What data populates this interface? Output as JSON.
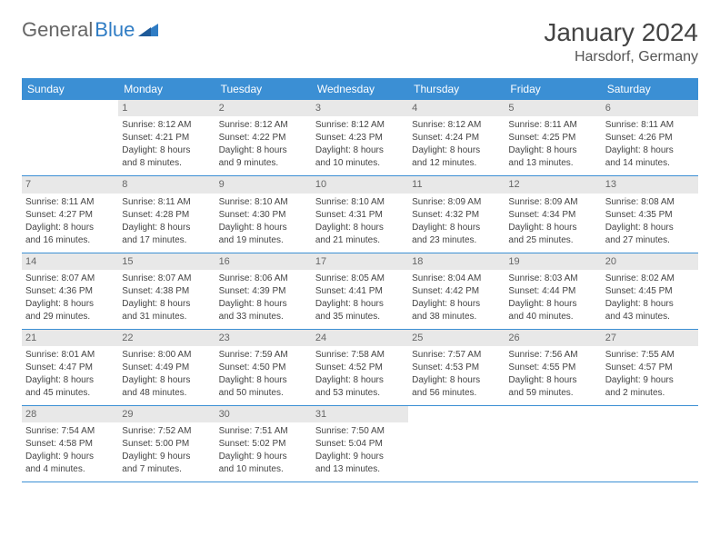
{
  "logo": {
    "text1": "General",
    "text2": "Blue"
  },
  "title": "January 2024",
  "location": "Harsdorf, Germany",
  "colors": {
    "header_bg": "#3b8fd4",
    "header_text": "#ffffff",
    "daynum_bg": "#e8e8e8",
    "daynum_text": "#666666",
    "body_text": "#444444",
    "rule": "#3b8fd4",
    "logo_gray": "#666666",
    "logo_blue": "#2f7cc4"
  },
  "weekdays": [
    "Sunday",
    "Monday",
    "Tuesday",
    "Wednesday",
    "Thursday",
    "Friday",
    "Saturday"
  ],
  "weeks": [
    [
      {
        "n": "",
        "sr": "",
        "ss": "",
        "dl1": "",
        "dl2": ""
      },
      {
        "n": "1",
        "sr": "Sunrise: 8:12 AM",
        "ss": "Sunset: 4:21 PM",
        "dl1": "Daylight: 8 hours",
        "dl2": "and 8 minutes."
      },
      {
        "n": "2",
        "sr": "Sunrise: 8:12 AM",
        "ss": "Sunset: 4:22 PM",
        "dl1": "Daylight: 8 hours",
        "dl2": "and 9 minutes."
      },
      {
        "n": "3",
        "sr": "Sunrise: 8:12 AM",
        "ss": "Sunset: 4:23 PM",
        "dl1": "Daylight: 8 hours",
        "dl2": "and 10 minutes."
      },
      {
        "n": "4",
        "sr": "Sunrise: 8:12 AM",
        "ss": "Sunset: 4:24 PM",
        "dl1": "Daylight: 8 hours",
        "dl2": "and 12 minutes."
      },
      {
        "n": "5",
        "sr": "Sunrise: 8:11 AM",
        "ss": "Sunset: 4:25 PM",
        "dl1": "Daylight: 8 hours",
        "dl2": "and 13 minutes."
      },
      {
        "n": "6",
        "sr": "Sunrise: 8:11 AM",
        "ss": "Sunset: 4:26 PM",
        "dl1": "Daylight: 8 hours",
        "dl2": "and 14 minutes."
      }
    ],
    [
      {
        "n": "7",
        "sr": "Sunrise: 8:11 AM",
        "ss": "Sunset: 4:27 PM",
        "dl1": "Daylight: 8 hours",
        "dl2": "and 16 minutes."
      },
      {
        "n": "8",
        "sr": "Sunrise: 8:11 AM",
        "ss": "Sunset: 4:28 PM",
        "dl1": "Daylight: 8 hours",
        "dl2": "and 17 minutes."
      },
      {
        "n": "9",
        "sr": "Sunrise: 8:10 AM",
        "ss": "Sunset: 4:30 PM",
        "dl1": "Daylight: 8 hours",
        "dl2": "and 19 minutes."
      },
      {
        "n": "10",
        "sr": "Sunrise: 8:10 AM",
        "ss": "Sunset: 4:31 PM",
        "dl1": "Daylight: 8 hours",
        "dl2": "and 21 minutes."
      },
      {
        "n": "11",
        "sr": "Sunrise: 8:09 AM",
        "ss": "Sunset: 4:32 PM",
        "dl1": "Daylight: 8 hours",
        "dl2": "and 23 minutes."
      },
      {
        "n": "12",
        "sr": "Sunrise: 8:09 AM",
        "ss": "Sunset: 4:34 PM",
        "dl1": "Daylight: 8 hours",
        "dl2": "and 25 minutes."
      },
      {
        "n": "13",
        "sr": "Sunrise: 8:08 AM",
        "ss": "Sunset: 4:35 PM",
        "dl1": "Daylight: 8 hours",
        "dl2": "and 27 minutes."
      }
    ],
    [
      {
        "n": "14",
        "sr": "Sunrise: 8:07 AM",
        "ss": "Sunset: 4:36 PM",
        "dl1": "Daylight: 8 hours",
        "dl2": "and 29 minutes."
      },
      {
        "n": "15",
        "sr": "Sunrise: 8:07 AM",
        "ss": "Sunset: 4:38 PM",
        "dl1": "Daylight: 8 hours",
        "dl2": "and 31 minutes."
      },
      {
        "n": "16",
        "sr": "Sunrise: 8:06 AM",
        "ss": "Sunset: 4:39 PM",
        "dl1": "Daylight: 8 hours",
        "dl2": "and 33 minutes."
      },
      {
        "n": "17",
        "sr": "Sunrise: 8:05 AM",
        "ss": "Sunset: 4:41 PM",
        "dl1": "Daylight: 8 hours",
        "dl2": "and 35 minutes."
      },
      {
        "n": "18",
        "sr": "Sunrise: 8:04 AM",
        "ss": "Sunset: 4:42 PM",
        "dl1": "Daylight: 8 hours",
        "dl2": "and 38 minutes."
      },
      {
        "n": "19",
        "sr": "Sunrise: 8:03 AM",
        "ss": "Sunset: 4:44 PM",
        "dl1": "Daylight: 8 hours",
        "dl2": "and 40 minutes."
      },
      {
        "n": "20",
        "sr": "Sunrise: 8:02 AM",
        "ss": "Sunset: 4:45 PM",
        "dl1": "Daylight: 8 hours",
        "dl2": "and 43 minutes."
      }
    ],
    [
      {
        "n": "21",
        "sr": "Sunrise: 8:01 AM",
        "ss": "Sunset: 4:47 PM",
        "dl1": "Daylight: 8 hours",
        "dl2": "and 45 minutes."
      },
      {
        "n": "22",
        "sr": "Sunrise: 8:00 AM",
        "ss": "Sunset: 4:49 PM",
        "dl1": "Daylight: 8 hours",
        "dl2": "and 48 minutes."
      },
      {
        "n": "23",
        "sr": "Sunrise: 7:59 AM",
        "ss": "Sunset: 4:50 PM",
        "dl1": "Daylight: 8 hours",
        "dl2": "and 50 minutes."
      },
      {
        "n": "24",
        "sr": "Sunrise: 7:58 AM",
        "ss": "Sunset: 4:52 PM",
        "dl1": "Daylight: 8 hours",
        "dl2": "and 53 minutes."
      },
      {
        "n": "25",
        "sr": "Sunrise: 7:57 AM",
        "ss": "Sunset: 4:53 PM",
        "dl1": "Daylight: 8 hours",
        "dl2": "and 56 minutes."
      },
      {
        "n": "26",
        "sr": "Sunrise: 7:56 AM",
        "ss": "Sunset: 4:55 PM",
        "dl1": "Daylight: 8 hours",
        "dl2": "and 59 minutes."
      },
      {
        "n": "27",
        "sr": "Sunrise: 7:55 AM",
        "ss": "Sunset: 4:57 PM",
        "dl1": "Daylight: 9 hours",
        "dl2": "and 2 minutes."
      }
    ],
    [
      {
        "n": "28",
        "sr": "Sunrise: 7:54 AM",
        "ss": "Sunset: 4:58 PM",
        "dl1": "Daylight: 9 hours",
        "dl2": "and 4 minutes."
      },
      {
        "n": "29",
        "sr": "Sunrise: 7:52 AM",
        "ss": "Sunset: 5:00 PM",
        "dl1": "Daylight: 9 hours",
        "dl2": "and 7 minutes."
      },
      {
        "n": "30",
        "sr": "Sunrise: 7:51 AM",
        "ss": "Sunset: 5:02 PM",
        "dl1": "Daylight: 9 hours",
        "dl2": "and 10 minutes."
      },
      {
        "n": "31",
        "sr": "Sunrise: 7:50 AM",
        "ss": "Sunset: 5:04 PM",
        "dl1": "Daylight: 9 hours",
        "dl2": "and 13 minutes."
      },
      {
        "n": "",
        "sr": "",
        "ss": "",
        "dl1": "",
        "dl2": ""
      },
      {
        "n": "",
        "sr": "",
        "ss": "",
        "dl1": "",
        "dl2": ""
      },
      {
        "n": "",
        "sr": "",
        "ss": "",
        "dl1": "",
        "dl2": ""
      }
    ]
  ]
}
